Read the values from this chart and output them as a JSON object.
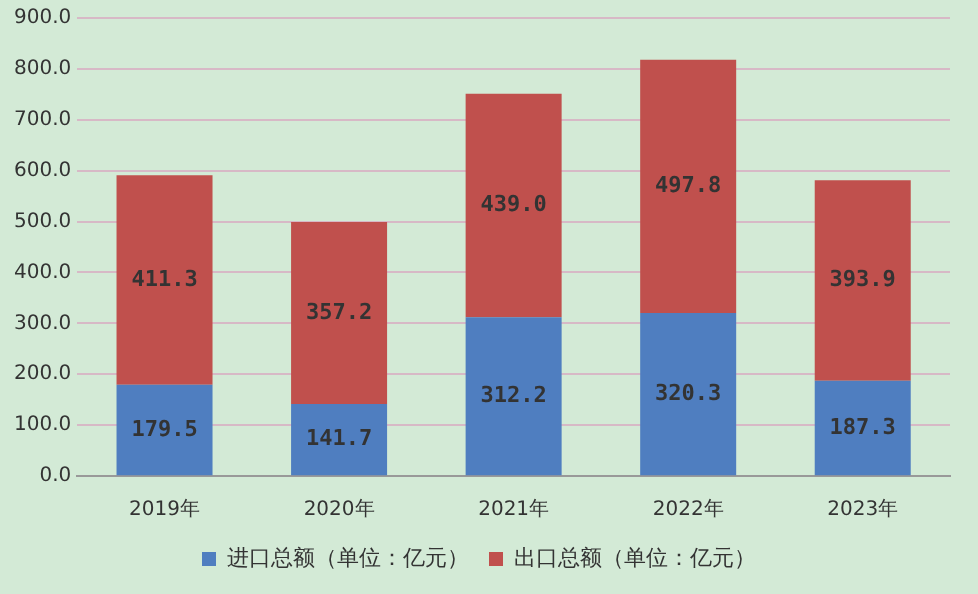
{
  "chart_data": {
    "type": "bar",
    "stacked": true,
    "categories": [
      "2019年",
      "2020年",
      "2021年",
      "2022年",
      "2023年"
    ],
    "series": [
      {
        "name": "进口总额（单位：亿元）",
        "color": "#4f7ec0",
        "values": [
          179.5,
          141.7,
          312.2,
          320.3,
          187.3
        ],
        "value_labels": [
          "179.5",
          "141.7",
          "312.2",
          "320.3",
          "187.3"
        ]
      },
      {
        "name": "出口总额（单位：亿元）",
        "color": "#c0504d",
        "values": [
          411.3,
          357.2,
          439.0,
          497.8,
          393.9
        ],
        "value_labels": [
          "411.3",
          "357.2",
          "439.0",
          "497.8",
          "393.9"
        ]
      }
    ],
    "ylim": [
      0,
      900
    ],
    "yticks": [
      {
        "value": 0,
        "label": "0.0"
      },
      {
        "value": 100,
        "label": "100.0"
      },
      {
        "value": 200,
        "label": "200.0"
      },
      {
        "value": 300,
        "label": "300.0"
      },
      {
        "value": 400,
        "label": "400.0"
      },
      {
        "value": 500,
        "label": "500.0"
      },
      {
        "value": 600,
        "label": "600.0"
      },
      {
        "value": 700,
        "label": "700.0"
      },
      {
        "value": 800,
        "label": "800.0"
      },
      {
        "value": 900,
        "label": "900.0"
      }
    ],
    "grid": "y",
    "legend": "bottom"
  }
}
